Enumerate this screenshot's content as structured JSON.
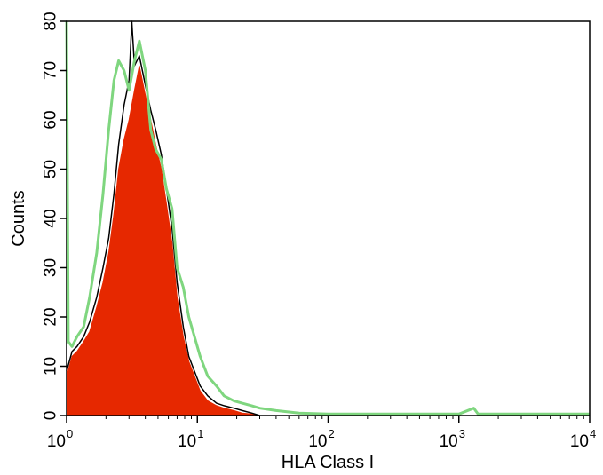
{
  "chart_data": {
    "type": "histogram",
    "xlabel": "HLA Class I",
    "ylabel": "Counts",
    "xscale": "log",
    "xlim": [
      1,
      10000
    ],
    "ylim": [
      0,
      80
    ],
    "grid": false,
    "legend": "none",
    "x_ticks": [
      {
        "base": "10",
        "exp": "0",
        "value": 1
      },
      {
        "base": "10",
        "exp": "1",
        "value": 10
      },
      {
        "base": "10",
        "exp": "2",
        "value": 100
      },
      {
        "base": "10",
        "exp": "3",
        "value": 1000
      },
      {
        "base": "10",
        "exp": "4",
        "value": 10000
      }
    ],
    "y_ticks": [
      "0",
      "10",
      "20",
      "30",
      "40",
      "50",
      "60",
      "70",
      "80"
    ],
    "colors": {
      "filled_series": "#e62800",
      "black_series": "#000000",
      "green_series": "#7fd67f"
    },
    "series": [
      {
        "style": "filled",
        "color": "#e62800",
        "x": [
          1.0,
          1.1,
          1.2,
          1.35,
          1.5,
          1.7,
          1.9,
          2.1,
          2.3,
          2.5,
          2.75,
          3.0,
          3.3,
          3.6,
          4.0,
          4.4,
          4.8,
          5.3,
          5.8,
          6.4,
          7.0,
          7.8,
          8.6,
          9.5,
          10.5,
          12.0,
          14.0,
          16.0,
          19.0,
          22.0,
          26.0,
          30.0
        ],
        "values": [
          8,
          12,
          13,
          15,
          17,
          22,
          27,
          33,
          41,
          50,
          56,
          60,
          66,
          71,
          65,
          60,
          55,
          50,
          43,
          35,
          24,
          16,
          11,
          8,
          5,
          3,
          2,
          1.5,
          1,
          0.5,
          0.3,
          0
        ]
      },
      {
        "style": "outline",
        "color": "#000000",
        "x": [
          1.0,
          1.1,
          1.2,
          1.35,
          1.5,
          1.7,
          1.9,
          2.1,
          2.3,
          2.5,
          2.75,
          3.0,
          3.15,
          3.3,
          3.6,
          4.0,
          4.4,
          4.8,
          5.3,
          5.8,
          6.4,
          7.0,
          7.8,
          8.6,
          9.5,
          10.5,
          12.0,
          14.0,
          16.0,
          19.0,
          22.0,
          26.0,
          30.0
        ],
        "values": [
          9,
          13,
          14,
          16,
          19,
          24,
          30,
          36,
          45,
          55,
          63,
          68,
          80,
          71,
          73,
          67,
          62,
          58,
          53,
          46,
          38,
          27,
          18,
          12,
          9,
          6,
          4,
          2.5,
          2,
          1.5,
          1,
          0.5,
          0
        ]
      },
      {
        "style": "outline",
        "color": "#7fd67f",
        "x": [
          1.0,
          1.03,
          1.1,
          1.2,
          1.35,
          1.5,
          1.7,
          1.9,
          2.1,
          2.3,
          2.5,
          2.75,
          3.0,
          3.3,
          3.6,
          4.0,
          4.4,
          4.8,
          5.3,
          5.8,
          6.4,
          7.0,
          7.8,
          8.6,
          9.5,
          10.5,
          12.0,
          14.0,
          16.0,
          19.0,
          22.0,
          26.0,
          30.0,
          40.0,
          60.0,
          100.0,
          300.0,
          1000.0,
          1300.0,
          1400.0,
          1500.0,
          3000.0,
          10000.0
        ],
        "values": [
          80,
          15,
          14,
          16,
          18,
          24,
          33,
          45,
          58,
          68,
          72,
          70,
          66,
          72,
          76,
          70,
          58,
          54,
          52,
          46,
          42,
          30,
          26,
          20,
          16,
          12,
          8,
          6,
          4,
          3,
          2.5,
          2,
          1.5,
          1,
          0.5,
          0.3,
          0.3,
          0.3,
          1.5,
          0.3,
          0.3,
          0.3,
          0.3
        ]
      }
    ]
  }
}
